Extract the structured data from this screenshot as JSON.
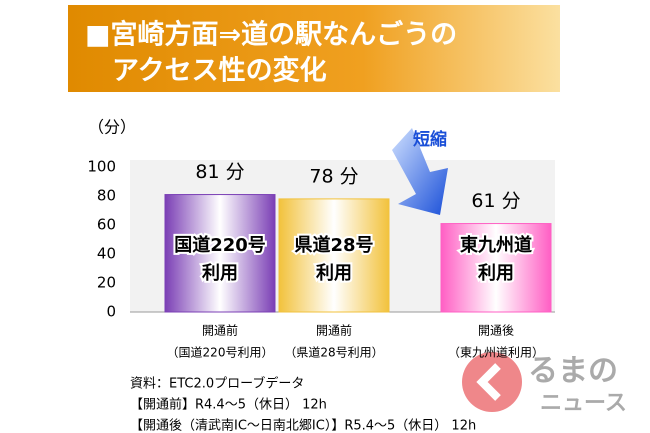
{
  "chart_data": {
    "type": "bar",
    "title": [
      "■宮崎方面⇒道の駅なんごうの",
      "アクセス性の変化"
    ],
    "y_label": "（分）",
    "categories": [
      "開通前",
      "開通前",
      "開通後"
    ],
    "category_notes": [
      "（国道220号利用）",
      "（県道28号利用）",
      "（東九州道利用）"
    ],
    "bar_labels": [
      [
        "国道220号",
        "利用"
      ],
      [
        "県道28号",
        "利用"
      ],
      [
        "東九州道",
        "利用"
      ]
    ],
    "values": [
      81,
      78,
      61
    ],
    "value_labels": [
      "81 分",
      "78 分",
      "61 分"
    ],
    "colors": [
      "#7b3fb5",
      "#f2c23c",
      "#ff5fc4"
    ],
    "ylim": [
      0,
      100
    ],
    "yticks": [
      0,
      20,
      40,
      60,
      80,
      100
    ],
    "grid": false,
    "annotation": "短縮",
    "notes": [
      "資料：ETC2.0プローブデータ",
      "【開通前】R4.4～5（休日） 12h",
      "【開通後（清武南IC～日南北郷IC）】R5.4～5（休日） 12h"
    ]
  },
  "watermark": [
    "るまの",
    "ニュース"
  ]
}
